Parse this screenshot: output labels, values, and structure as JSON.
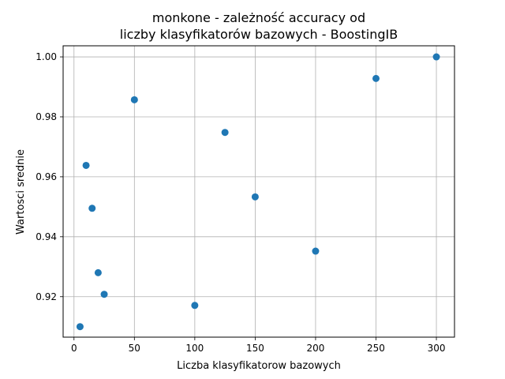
{
  "chart_data": {
    "type": "scatter",
    "title_lines": [
      "monkone - zależność accuracy od",
      "liczby klasyfikatorów bazowych - BoostingIB"
    ],
    "xlabel": "Liczba klasyfikatorow bazowych",
    "ylabel": "Wartosci srednie",
    "xlim": [
      -9,
      315
    ],
    "ylim": [
      0.9065,
      1.0037
    ],
    "xticks": [
      0,
      50,
      100,
      150,
      200,
      250,
      300
    ],
    "yticks": [
      0.92,
      0.94,
      0.96,
      0.98,
      1.0
    ],
    "ytick_labels": [
      "0.92",
      "0.94",
      "0.96",
      "0.98",
      "1.00"
    ],
    "grid": true,
    "marker_color": "#1f77b4",
    "series": [
      {
        "x": [
          5,
          10,
          15,
          20,
          25,
          50,
          100,
          125,
          150,
          200,
          250,
          300
        ],
        "y": [
          0.91,
          0.9638,
          0.9495,
          0.928,
          0.9208,
          0.9857,
          0.9171,
          0.9748,
          0.9533,
          0.9352,
          0.9928,
          1.0
        ]
      }
    ]
  }
}
